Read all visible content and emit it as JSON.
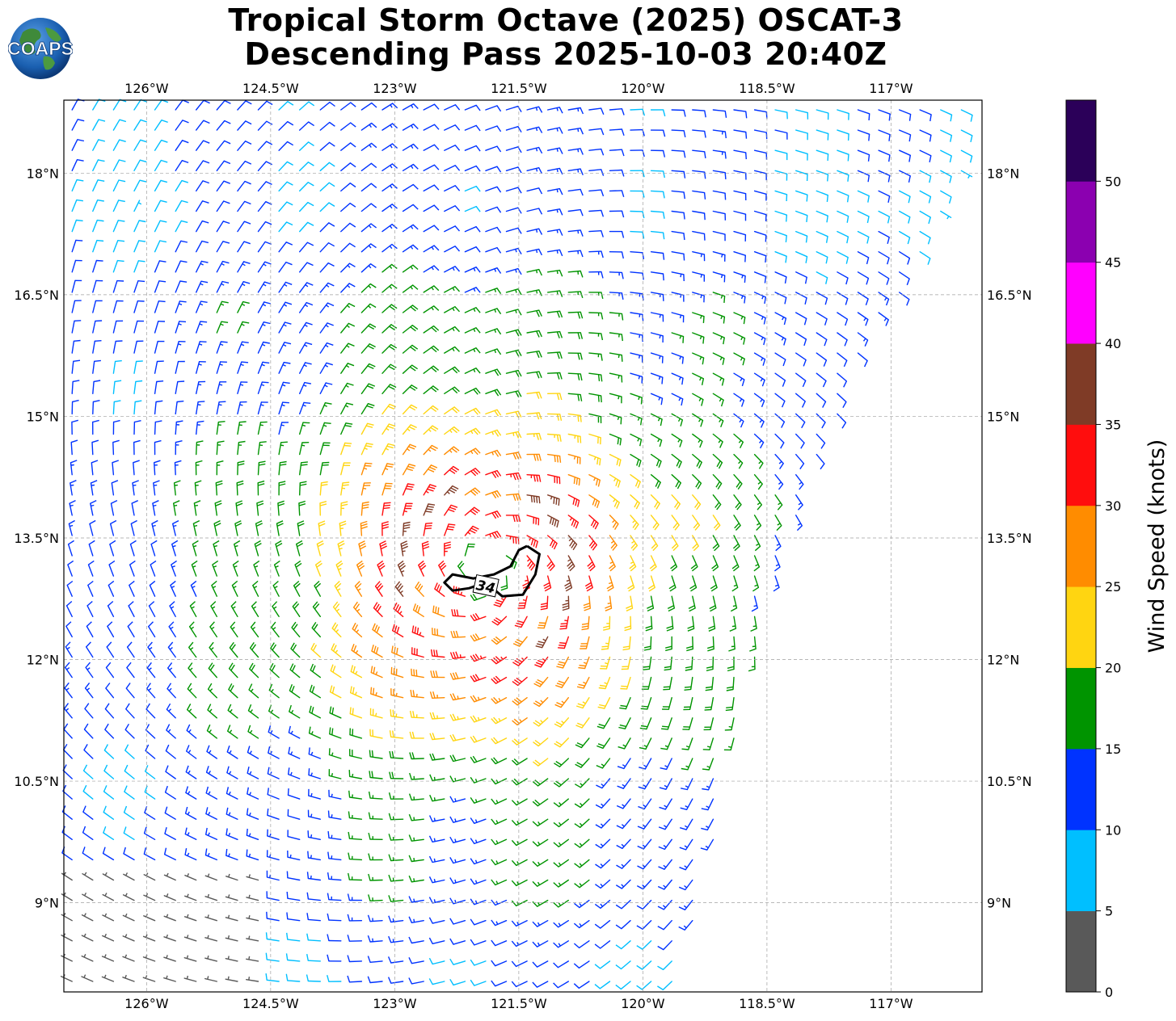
{
  "title": {
    "line1": "Tropical Storm Octave (2025) OSCAT-3",
    "line2": "Descending Pass 2025-10-03 20:40Z"
  },
  "logo": {
    "text": "COAPS",
    "icon": "globe-logo-icon"
  },
  "map": {
    "lon_range": [
      -127.0,
      -115.9
    ],
    "lat_range": [
      7.9,
      18.9
    ],
    "lon_ticks": [
      {
        "value": -126.0,
        "label": "126°W"
      },
      {
        "value": -124.5,
        "label": "124.5°W"
      },
      {
        "value": -123.0,
        "label": "123°W"
      },
      {
        "value": -121.5,
        "label": "121.5°W"
      },
      {
        "value": -120.0,
        "label": "120°W"
      },
      {
        "value": -118.5,
        "label": "118.5°W"
      },
      {
        "value": -117.0,
        "label": "117°W"
      }
    ],
    "lat_ticks": [
      {
        "value": 18.0,
        "label": "18°N"
      },
      {
        "value": 16.5,
        "label": "16.5°N"
      },
      {
        "value": 15.0,
        "label": "15°N"
      },
      {
        "value": 13.5,
        "label": "13.5°N"
      },
      {
        "value": 12.0,
        "label": "12°N"
      },
      {
        "value": 10.5,
        "label": "10.5°N"
      },
      {
        "value": 9.0,
        "label": "9°N"
      }
    ],
    "gridlines": true,
    "storm_center": {
      "lon": -121.9,
      "lat": 13.1
    },
    "swath_east_edge": [
      [
        -115.9,
        18.9
      ],
      [
        -115.9,
        18.2
      ],
      [
        -117.2,
        15.9
      ],
      [
        -118.1,
        13.7
      ],
      [
        -118.7,
        11.6
      ],
      [
        -119.2,
        9.2
      ],
      [
        -119.5,
        7.9
      ]
    ],
    "contour": {
      "label": "34",
      "points": [
        [
          -121.4,
          13.4
        ],
        [
          -121.25,
          13.3
        ],
        [
          -121.3,
          13.05
        ],
        [
          -121.45,
          12.8
        ],
        [
          -121.7,
          12.78
        ],
        [
          -121.9,
          12.95
        ],
        [
          -122.1,
          12.88
        ],
        [
          -122.3,
          12.85
        ],
        [
          -122.4,
          12.95
        ],
        [
          -122.3,
          13.05
        ],
        [
          -122.05,
          13.0
        ],
        [
          -121.8,
          13.05
        ],
        [
          -121.6,
          13.15
        ],
        [
          -121.5,
          13.35
        ],
        [
          -121.4,
          13.4
        ]
      ]
    }
  },
  "colorbar": {
    "title": "Wind Speed (knots)",
    "ticks": [
      "0",
      "5",
      "10",
      "15",
      "20",
      "25",
      "30",
      "35",
      "40",
      "45",
      "50"
    ],
    "bins": [
      {
        "min": 0,
        "max": 5,
        "color": "#595959"
      },
      {
        "min": 5,
        "max": 10,
        "color": "#00bfff"
      },
      {
        "min": 10,
        "max": 15,
        "color": "#0033ff"
      },
      {
        "min": 15,
        "max": 20,
        "color": "#009400"
      },
      {
        "min": 20,
        "max": 25,
        "color": "#ffd511"
      },
      {
        "min": 25,
        "max": 30,
        "color": "#ff8c00"
      },
      {
        "min": 30,
        "max": 35,
        "color": "#ff0d0d"
      },
      {
        "min": 35,
        "max": 40,
        "color": "#7f3b26"
      },
      {
        "min": 40,
        "max": 45,
        "color": "#ff00ff"
      },
      {
        "min": 45,
        "max": 50,
        "color": "#8b00b0"
      },
      {
        "min": 50,
        "max": 55,
        "color": "#2b0059"
      }
    ]
  }
}
